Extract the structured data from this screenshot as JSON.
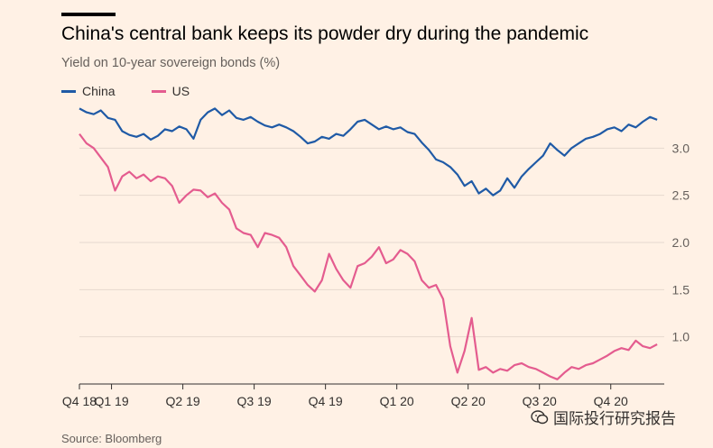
{
  "title": "China's central bank keeps its powder dry during the pandemic",
  "subtitle": "Yield on 10-year sovereign bonds (%)",
  "source": "Source: Bloomberg",
  "watermark": "国际投行研究报告",
  "colors": {
    "background": "#fff1e5",
    "china": "#1f5aa6",
    "us": "#e45c8f",
    "grid": "#e6d9ce",
    "axis": "#33302e"
  },
  "chart_data": {
    "type": "line",
    "title": "China's central bank keeps its powder dry during the pandemic",
    "ylabel": "Yield on 10-year sovereign bonds (%)",
    "xlabel": "",
    "ylim": [
      0.5,
      3.5
    ],
    "yticks": [
      1.0,
      1.5,
      2.0,
      2.5,
      3.0
    ],
    "xlim": [
      0,
      8.2
    ],
    "xticks": [
      {
        "label": "Q4 18",
        "x": 0
      },
      {
        "label": "Q1 19",
        "x": 0.45
      },
      {
        "label": "Q2 19",
        "x": 1.45
      },
      {
        "label": "Q3 19",
        "x": 2.45
      },
      {
        "label": "Q4 19",
        "x": 3.45
      },
      {
        "label": "Q1 20",
        "x": 4.45
      },
      {
        "label": "Q2 20",
        "x": 5.45
      },
      {
        "label": "Q3 20",
        "x": 6.45
      },
      {
        "label": "Q4 20",
        "x": 7.45
      }
    ],
    "legend": [
      "China",
      "US"
    ],
    "series": [
      {
        "name": "China",
        "x": [
          0,
          0.1,
          0.2,
          0.3,
          0.4,
          0.5,
          0.6,
          0.7,
          0.8,
          0.9,
          1.0,
          1.1,
          1.2,
          1.3,
          1.4,
          1.5,
          1.6,
          1.7,
          1.8,
          1.9,
          2.0,
          2.1,
          2.2,
          2.3,
          2.4,
          2.5,
          2.6,
          2.7,
          2.8,
          2.9,
          3.0,
          3.1,
          3.2,
          3.3,
          3.4,
          3.5,
          3.6,
          3.7,
          3.8,
          3.9,
          4.0,
          4.1,
          4.2,
          4.3,
          4.4,
          4.5,
          4.6,
          4.7,
          4.8,
          4.9,
          5.0,
          5.1,
          5.2,
          5.3,
          5.4,
          5.5,
          5.6,
          5.7,
          5.8,
          5.9,
          6.0,
          6.1,
          6.2,
          6.3,
          6.4,
          6.5,
          6.6,
          6.7,
          6.8,
          6.9,
          7.0,
          7.1,
          7.2,
          7.3,
          7.4,
          7.5,
          7.6,
          7.7,
          7.8,
          7.9,
          8.0,
          8.1
        ],
        "values": [
          3.42,
          3.38,
          3.36,
          3.4,
          3.32,
          3.3,
          3.18,
          3.14,
          3.12,
          3.15,
          3.09,
          3.13,
          3.2,
          3.18,
          3.23,
          3.2,
          3.1,
          3.3,
          3.38,
          3.42,
          3.35,
          3.4,
          3.32,
          3.3,
          3.33,
          3.28,
          3.24,
          3.22,
          3.25,
          3.22,
          3.18,
          3.12,
          3.05,
          3.07,
          3.12,
          3.1,
          3.15,
          3.13,
          3.2,
          3.28,
          3.3,
          3.25,
          3.2,
          3.23,
          3.2,
          3.22,
          3.17,
          3.15,
          3.06,
          2.98,
          2.88,
          2.85,
          2.8,
          2.72,
          2.6,
          2.65,
          2.52,
          2.57,
          2.5,
          2.55,
          2.68,
          2.58,
          2.7,
          2.78,
          2.85,
          2.92,
          3.05,
          2.98,
          2.92,
          3.0,
          3.05,
          3.1,
          3.12,
          3.15,
          3.2,
          3.22,
          3.18,
          3.25,
          3.22,
          3.28,
          3.33,
          3.3
        ]
      },
      {
        "name": "US",
        "x": [
          0,
          0.1,
          0.2,
          0.3,
          0.4,
          0.5,
          0.6,
          0.7,
          0.8,
          0.9,
          1.0,
          1.1,
          1.2,
          1.3,
          1.4,
          1.5,
          1.6,
          1.7,
          1.8,
          1.9,
          2.0,
          2.1,
          2.2,
          2.3,
          2.4,
          2.5,
          2.6,
          2.7,
          2.8,
          2.9,
          3.0,
          3.1,
          3.2,
          3.3,
          3.4,
          3.5,
          3.6,
          3.7,
          3.8,
          3.9,
          4.0,
          4.1,
          4.2,
          4.3,
          4.4,
          4.5,
          4.6,
          4.7,
          4.8,
          4.9,
          5.0,
          5.1,
          5.2,
          5.3,
          5.4,
          5.5,
          5.6,
          5.7,
          5.8,
          5.9,
          6.0,
          6.1,
          6.2,
          6.3,
          6.4,
          6.5,
          6.6,
          6.7,
          6.8,
          6.9,
          7.0,
          7.1,
          7.2,
          7.3,
          7.4,
          7.5,
          7.6,
          7.7,
          7.8,
          7.9,
          8.0,
          8.1
        ],
        "values": [
          3.15,
          3.05,
          3.0,
          2.9,
          2.8,
          2.55,
          2.7,
          2.75,
          2.68,
          2.72,
          2.65,
          2.7,
          2.68,
          2.6,
          2.42,
          2.5,
          2.56,
          2.55,
          2.48,
          2.52,
          2.42,
          2.35,
          2.15,
          2.1,
          2.08,
          1.95,
          2.1,
          2.08,
          2.05,
          1.95,
          1.75,
          1.65,
          1.55,
          1.48,
          1.6,
          1.88,
          1.72,
          1.6,
          1.52,
          1.75,
          1.78,
          1.85,
          1.95,
          1.78,
          1.82,
          1.92,
          1.88,
          1.8,
          1.6,
          1.52,
          1.55,
          1.4,
          0.9,
          0.62,
          0.85,
          1.2,
          0.65,
          0.68,
          0.62,
          0.66,
          0.64,
          0.7,
          0.72,
          0.68,
          0.66,
          0.62,
          0.58,
          0.55,
          0.62,
          0.68,
          0.66,
          0.7,
          0.72,
          0.76,
          0.8,
          0.85,
          0.88,
          0.86,
          0.96,
          0.9,
          0.88,
          0.92
        ]
      }
    ]
  }
}
